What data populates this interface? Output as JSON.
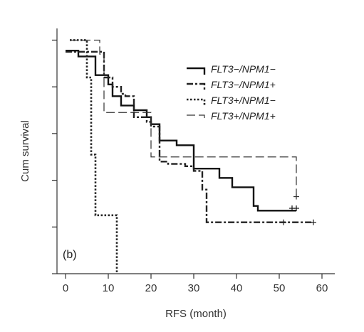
{
  "chart_data": {
    "type": "line",
    "subtype": "kaplan-meier-step",
    "panel_label": "(b)",
    "title": "",
    "xlabel": "RFS (month)",
    "ylabel": "Cum survival",
    "xlim": [
      -2,
      63
    ],
    "ylim": [
      0,
      1.05
    ],
    "x_ticks": [
      0,
      10,
      20,
      30,
      40,
      50,
      60
    ],
    "x_tick_labels": [
      "0",
      "10",
      "20",
      "30",
      "40",
      "50",
      "60"
    ],
    "y_ticks": [
      0.0,
      0.2,
      0.4,
      0.6,
      0.8,
      1.0
    ],
    "y_tick_labels_shown": false,
    "grid": false,
    "legend_position": "top-right",
    "series": [
      {
        "name": "FLT3−/NPM1−",
        "style": "solid",
        "color": "#111111",
        "points": [
          [
            0,
            0.955
          ],
          [
            3,
            0.93
          ],
          [
            7,
            0.85
          ],
          [
            10,
            0.81
          ],
          [
            11,
            0.76
          ],
          [
            13,
            0.72
          ],
          [
            16,
            0.7
          ],
          [
            19,
            0.67
          ],
          [
            20,
            0.64
          ],
          [
            22,
            0.57
          ],
          [
            26,
            0.55
          ],
          [
            30,
            0.45
          ],
          [
            36,
            0.41
          ],
          [
            39,
            0.37
          ],
          [
            44,
            0.29
          ],
          [
            45,
            0.27
          ],
          [
            54,
            0.27
          ]
        ],
        "censored": [
          [
            53,
            0.28
          ],
          [
            54,
            0.28
          ]
        ]
      },
      {
        "name": "FLT3−/NPM1+",
        "style": "dash-dot",
        "color": "#222222",
        "points": [
          [
            0,
            0.95
          ],
          [
            9,
            0.84
          ],
          [
            11,
            0.8
          ],
          [
            13,
            0.77
          ],
          [
            14,
            0.76
          ],
          [
            16,
            0.67
          ],
          [
            19,
            0.65
          ],
          [
            20,
            0.63
          ],
          [
            22,
            0.48
          ],
          [
            24,
            0.47
          ],
          [
            28,
            0.46
          ],
          [
            30,
            0.44
          ],
          [
            32,
            0.36
          ],
          [
            33,
            0.22
          ],
          [
            58,
            0.22
          ]
        ],
        "censored": [
          [
            51,
            0.22
          ],
          [
            58,
            0.22
          ]
        ]
      },
      {
        "name": "FLT3+/NPM1−",
        "style": "dotted",
        "color": "#222222",
        "points": [
          [
            1,
            1.0
          ],
          [
            5,
            0.84
          ],
          [
            6,
            0.51
          ],
          [
            7,
            0.25
          ],
          [
            12,
            0.25
          ],
          [
            12,
            0.0
          ]
        ],
        "censored": []
      },
      {
        "name": "FLT3+/NPM1+",
        "style": "long-dash",
        "color": "#333333",
        "points": [
          [
            1,
            1.0
          ],
          [
            8,
            0.94
          ],
          [
            9,
            0.69
          ],
          [
            20,
            0.5
          ],
          [
            54,
            0.33
          ]
        ],
        "censored": [
          [
            54,
            0.33
          ]
        ]
      }
    ]
  }
}
